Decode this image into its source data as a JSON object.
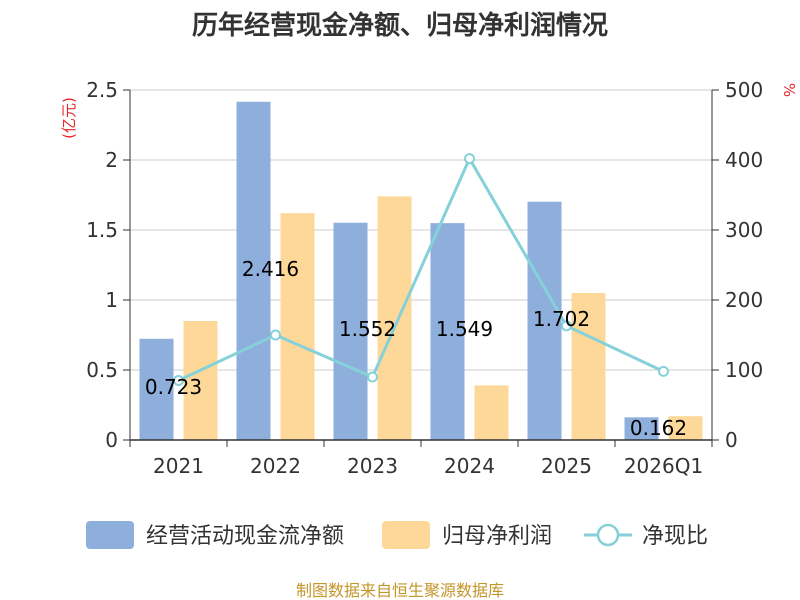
{
  "title": "历年经营现金净额、归母净利润情况",
  "source_text": "制图数据来自恒生聚源数据库",
  "colors": {
    "operating_cash": "#8eaedc",
    "net_profit": "#fdd898",
    "ratio_line": "#86d1d9",
    "unit_text": "#e8262a",
    "source_text": "#c3962a",
    "axis": "#333333",
    "grid": "#cccccc"
  },
  "chart_data": {
    "type": "bar",
    "title": "历年经营现金净额、归母净利润情况",
    "categories": [
      "2021",
      "2022",
      "2023",
      "2024",
      "2025",
      "2026Q1"
    ],
    "y_left": {
      "unit_label": "(亿元)",
      "lim": [
        0,
        2.5
      ],
      "ticks": [
        "0",
        "0.5",
        "1",
        "1.5",
        "2",
        "2.5"
      ]
    },
    "y_right": {
      "unit_label": "%",
      "lim": [
        0,
        500
      ],
      "ticks": [
        "0",
        "100",
        "200",
        "300",
        "400",
        "500"
      ]
    },
    "grid": true,
    "legend_position": "bottom",
    "series": [
      {
        "name": "经营活动现金流净额",
        "kind": "bar",
        "axis": "left",
        "values": [
          0.723,
          2.416,
          1.552,
          1.549,
          1.702,
          0.162
        ],
        "labels": [
          "0.723",
          "2.416",
          "1.552",
          "1.549",
          "1.702",
          "0.162"
        ]
      },
      {
        "name": "归母净利润",
        "kind": "bar",
        "axis": "left",
        "values": [
          0.85,
          1.62,
          1.74,
          0.39,
          1.05,
          0.17
        ]
      },
      {
        "name": "净现比",
        "kind": "line",
        "axis": "right",
        "values": [
          85,
          150,
          90,
          402,
          163,
          98
        ]
      }
    ]
  }
}
